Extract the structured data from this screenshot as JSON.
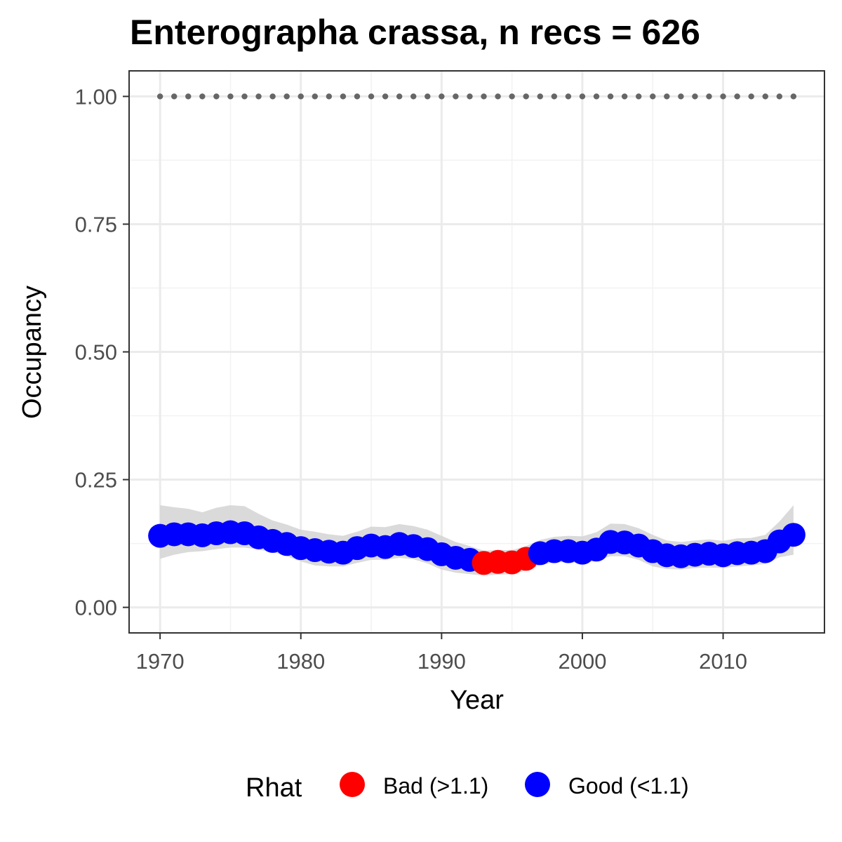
{
  "chart_data": {
    "type": "line",
    "title": "Enterographa crassa, n recs = 626",
    "xlabel": "Year",
    "ylabel": "Occupancy",
    "xlim": [
      1967.8,
      2017.2
    ],
    "ylim": [
      -0.05,
      1.05
    ],
    "x_ticks": [
      1970,
      1980,
      1990,
      2000,
      2010
    ],
    "x_tick_labels": [
      "1970",
      "1980",
      "1990",
      "2000",
      "2010"
    ],
    "y_ticks": [
      0,
      0.25,
      0.5,
      0.75,
      1
    ],
    "y_tick_labels": [
      "0.00",
      "0.25",
      "0.50",
      "0.75",
      "1.00"
    ],
    "grid": true,
    "legend": {
      "title": "Rhat",
      "position": "bottom",
      "entries": [
        {
          "label": "Bad (>1.1)",
          "color": "#ff0000"
        },
        {
          "label": "Good (<1.1)",
          "color": "#0000ff"
        }
      ]
    },
    "colors": {
      "bad": "#ff0000",
      "good": "#0000ff",
      "ribbon": "#d3d3d3",
      "reference_points": "#666666"
    },
    "x": [
      1970,
      1971,
      1972,
      1973,
      1974,
      1975,
      1976,
      1977,
      1978,
      1979,
      1980,
      1981,
      1982,
      1983,
      1984,
      1985,
      1986,
      1987,
      1988,
      1989,
      1990,
      1991,
      1992,
      1993,
      1994,
      1995,
      1996,
      1997,
      1998,
      1999,
      2000,
      2001,
      2002,
      2003,
      2004,
      2005,
      2006,
      2007,
      2008,
      2009,
      2010,
      2011,
      2012,
      2013,
      2014,
      2015
    ],
    "series": [
      {
        "values": [
          0.14,
          0.143,
          0.143,
          0.141,
          0.145,
          0.147,
          0.145,
          0.137,
          0.13,
          0.124,
          0.116,
          0.112,
          0.109,
          0.107,
          0.116,
          0.121,
          0.118,
          0.124,
          0.12,
          0.114,
          0.104,
          0.097,
          0.093,
          0.087,
          0.089,
          0.088,
          0.095,
          0.106,
          0.11,
          0.11,
          0.107,
          0.113,
          0.128,
          0.127,
          0.121,
          0.11,
          0.102,
          0.1,
          0.103,
          0.105,
          0.102,
          0.106,
          0.107,
          0.11,
          0.129,
          0.142
        ],
        "rhat": [
          "Good",
          "Good",
          "Good",
          "Good",
          "Good",
          "Good",
          "Good",
          "Good",
          "Good",
          "Good",
          "Good",
          "Good",
          "Good",
          "Good",
          "Good",
          "Good",
          "Good",
          "Good",
          "Good",
          "Good",
          "Good",
          "Good",
          "Good",
          "Bad",
          "Bad",
          "Bad",
          "Bad",
          "Good",
          "Good",
          "Good",
          "Good",
          "Good",
          "Good",
          "Good",
          "Good",
          "Good",
          "Good",
          "Good",
          "Good",
          "Good",
          "Good",
          "Good",
          "Good",
          "Good",
          "Good",
          "Good"
        ],
        "lower": [
          0.095,
          0.103,
          0.108,
          0.11,
          0.114,
          0.117,
          0.117,
          0.113,
          0.108,
          0.1,
          0.09,
          0.082,
          0.08,
          0.08,
          0.087,
          0.093,
          0.093,
          0.097,
          0.094,
          0.086,
          0.074,
          0.068,
          0.065,
          0.062,
          0.064,
          0.065,
          0.072,
          0.083,
          0.088,
          0.088,
          0.086,
          0.091,
          0.1,
          0.1,
          0.093,
          0.08,
          0.075,
          0.074,
          0.077,
          0.078,
          0.077,
          0.08,
          0.082,
          0.085,
          0.098,
          0.103
        ],
        "upper": [
          0.2,
          0.196,
          0.193,
          0.186,
          0.195,
          0.2,
          0.198,
          0.183,
          0.17,
          0.162,
          0.152,
          0.148,
          0.143,
          0.14,
          0.148,
          0.158,
          0.157,
          0.163,
          0.159,
          0.152,
          0.14,
          0.128,
          0.12,
          0.111,
          0.112,
          0.112,
          0.12,
          0.132,
          0.138,
          0.14,
          0.139,
          0.147,
          0.164,
          0.163,
          0.155,
          0.142,
          0.131,
          0.128,
          0.131,
          0.133,
          0.13,
          0.135,
          0.136,
          0.142,
          0.168,
          0.2
        ]
      }
    ],
    "reference_points": {
      "y": 1.0,
      "x_step": 1,
      "x_start": 1970,
      "x_end": 2015
    }
  }
}
